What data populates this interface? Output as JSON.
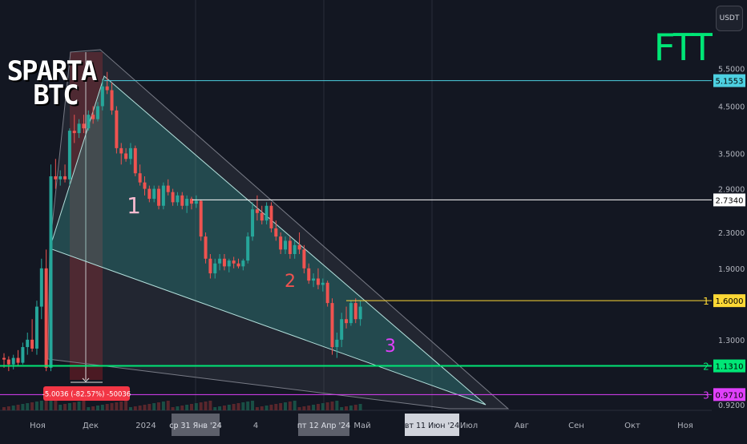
{
  "header": {
    "currency_label": "USDT",
    "ticker": "FTT",
    "watermark_line1": "SPARTA",
    "watermark_line2": "BTC"
  },
  "chart_data": {
    "type": "candlestick",
    "y_scale": "log",
    "ylim": [
      0.92,
      6.0
    ],
    "price_ticks": [
      "5.5000",
      "4.5000",
      "3.5000",
      "2.9000",
      "2.3000",
      "1.9000",
      "1.3000",
      "0.9200"
    ],
    "time_ticks": [
      "Ноя",
      "Дек",
      "2024",
      "4",
      "Май",
      "Июл",
      "Авг",
      "Сен",
      "Окт",
      "Ноя"
    ],
    "crosshair_labels": [
      "ср 31 Янв '24",
      "пт 12 Апр '24",
      "вт 11 Июн '24"
    ],
    "levels": [
      {
        "price": 5.1553,
        "label": "5.1553",
        "tag": "",
        "color": "#4dd0e1"
      },
      {
        "price": 2.734,
        "label": "2.7340",
        "tag": "",
        "color": "#ffffff"
      },
      {
        "price": 1.6,
        "label": "1.6000",
        "tag": "1",
        "color": "#fdd835"
      },
      {
        "price": 1.131,
        "label": "1.1310",
        "tag": "2",
        "color": "#00e676"
      },
      {
        "price": 0.971,
        "label": "0.9710",
        "tag": "3",
        "color": "#e040fb"
      }
    ],
    "wave_labels": [
      {
        "text": "1",
        "price": 2.55,
        "color": "#f8bbd0"
      },
      {
        "text": "2",
        "price": 1.72,
        "color": "#ef5350"
      },
      {
        "text": "3",
        "price": 1.22,
        "color": "#e040fb"
      }
    ],
    "measure_label": "-5.0036 (-82.57%) -50036",
    "measure_range": [
      6.0,
      1.05
    ],
    "candles": [
      [
        1.18,
        1.21,
        1.12,
        1.17
      ],
      [
        1.17,
        1.19,
        1.1,
        1.14
      ],
      [
        1.14,
        1.2,
        1.11,
        1.18
      ],
      [
        1.18,
        1.23,
        1.13,
        1.15
      ],
      [
        1.15,
        1.28,
        1.14,
        1.25
      ],
      [
        1.25,
        1.35,
        1.2,
        1.3
      ],
      [
        1.3,
        1.45,
        1.22,
        1.24
      ],
      [
        1.24,
        1.6,
        1.2,
        1.55
      ],
      [
        1.55,
        2.0,
        1.45,
        1.9
      ],
      [
        1.9,
        2.1,
        1.1,
        1.12
      ],
      [
        1.12,
        3.3,
        1.1,
        3.1
      ],
      [
        3.1,
        3.4,
        2.9,
        3.05
      ],
      [
        3.05,
        3.2,
        2.95,
        3.1
      ],
      [
        3.1,
        3.3,
        3.0,
        3.05
      ],
      [
        3.05,
        4.0,
        2.95,
        3.95
      ],
      [
        3.95,
        4.3,
        3.7,
        3.9
      ],
      [
        3.9,
        4.2,
        3.8,
        4.1
      ],
      [
        4.1,
        4.3,
        3.9,
        4.0
      ],
      [
        4.0,
        4.4,
        3.95,
        4.3
      ],
      [
        4.3,
        4.5,
        4.1,
        4.2
      ],
      [
        4.2,
        4.6,
        4.15,
        4.5
      ],
      [
        4.5,
        5.2,
        4.4,
        5.0
      ],
      [
        5.0,
        5.4,
        4.8,
        4.9
      ],
      [
        4.9,
        5.1,
        4.3,
        4.4
      ],
      [
        4.4,
        4.5,
        3.5,
        3.6
      ],
      [
        3.6,
        3.7,
        3.3,
        3.5
      ],
      [
        3.5,
        3.6,
        3.35,
        3.4
      ],
      [
        3.4,
        3.7,
        3.3,
        3.6
      ],
      [
        3.6,
        3.65,
        3.1,
        3.15
      ],
      [
        3.15,
        3.3,
        2.95,
        3.0
      ],
      [
        3.0,
        3.1,
        2.8,
        2.9
      ],
      [
        2.9,
        2.95,
        2.7,
        2.75
      ],
      [
        2.75,
        2.95,
        2.7,
        2.9
      ],
      [
        2.9,
        2.95,
        2.6,
        2.65
      ],
      [
        2.65,
        3.0,
        2.6,
        2.95
      ],
      [
        2.95,
        3.05,
        2.8,
        2.85
      ],
      [
        2.85,
        2.9,
        2.65,
        2.7
      ],
      [
        2.7,
        2.85,
        2.65,
        2.8
      ],
      [
        2.8,
        2.85,
        2.6,
        2.65
      ],
      [
        2.65,
        2.8,
        2.55,
        2.75
      ],
      [
        2.75,
        2.78,
        2.6,
        2.68
      ],
      [
        2.68,
        2.8,
        2.62,
        2.72
      ],
      [
        2.72,
        2.74,
        2.2,
        2.25
      ],
      [
        2.25,
        2.3,
        1.95,
        2.0
      ],
      [
        2.0,
        2.05,
        1.8,
        1.85
      ],
      [
        1.85,
        2.0,
        1.8,
        1.95
      ],
      [
        1.95,
        2.05,
        1.88,
        2.0
      ],
      [
        2.0,
        2.05,
        1.88,
        1.92
      ],
      [
        1.92,
        2.0,
        1.86,
        1.98
      ],
      [
        1.98,
        2.02,
        1.9,
        1.95
      ],
      [
        1.95,
        2.0,
        1.9,
        1.92
      ],
      [
        1.92,
        2.0,
        1.88,
        1.98
      ],
      [
        1.98,
        2.3,
        1.95,
        2.25
      ],
      [
        2.25,
        2.7,
        2.2,
        2.6
      ],
      [
        2.6,
        2.8,
        2.45,
        2.55
      ],
      [
        2.55,
        2.65,
        2.4,
        2.45
      ],
      [
        2.45,
        2.7,
        2.4,
        2.65
      ],
      [
        2.65,
        2.7,
        2.3,
        2.35
      ],
      [
        2.35,
        2.45,
        2.2,
        2.25
      ],
      [
        2.25,
        2.3,
        2.05,
        2.1
      ],
      [
        2.1,
        2.25,
        2.05,
        2.2
      ],
      [
        2.2,
        2.25,
        2.0,
        2.05
      ],
      [
        2.05,
        2.2,
        2.0,
        2.15
      ],
      [
        2.15,
        2.3,
        2.05,
        2.1
      ],
      [
        2.1,
        2.15,
        1.85,
        1.9
      ],
      [
        1.9,
        1.95,
        1.75,
        1.78
      ],
      [
        1.78,
        1.85,
        1.72,
        1.8
      ],
      [
        1.8,
        1.9,
        1.7,
        1.74
      ],
      [
        1.74,
        1.8,
        1.68,
        1.76
      ],
      [
        1.76,
        1.78,
        1.55,
        1.58
      ],
      [
        1.58,
        1.62,
        1.2,
        1.25
      ],
      [
        1.25,
        1.35,
        1.18,
        1.3
      ],
      [
        1.3,
        1.5,
        1.25,
        1.45
      ],
      [
        1.45,
        1.55,
        1.38,
        1.42
      ],
      [
        1.42,
        1.6,
        1.4,
        1.58
      ],
      [
        1.58,
        1.62,
        1.42,
        1.45
      ],
      [
        1.45,
        1.6,
        1.4,
        1.55
      ]
    ]
  }
}
